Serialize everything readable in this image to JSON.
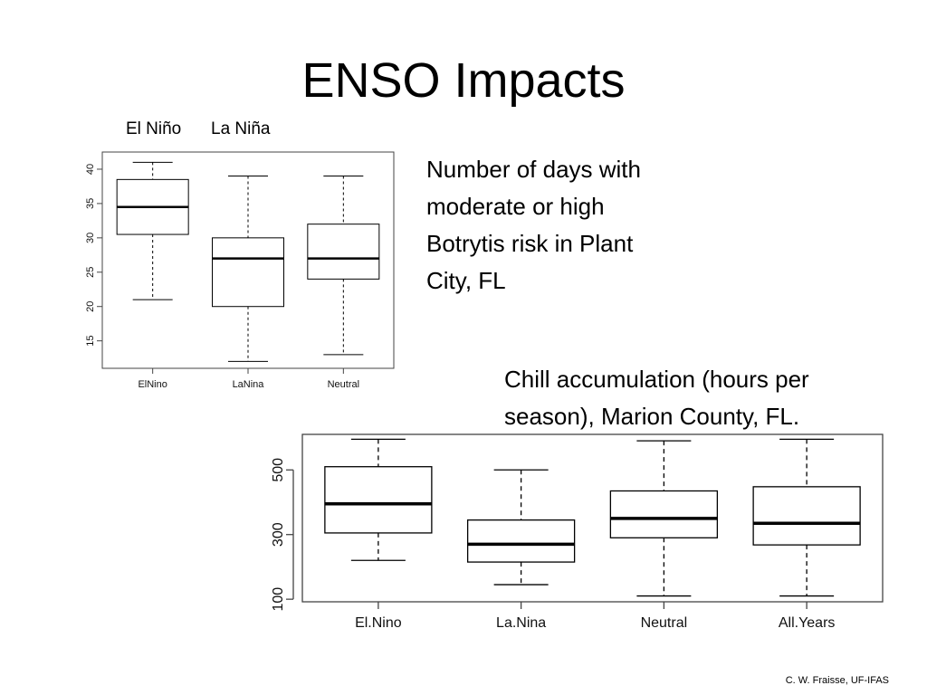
{
  "slide": {
    "title": "ENSO Impacts",
    "top_labels": [
      "El Niño",
      "La Niña"
    ],
    "botrytis_caption": [
      "Number of days with",
      "moderate or high",
      "Botrytis risk in Plant",
      "City, FL"
    ],
    "chill_caption": [
      "Chill accumulation (hours per",
      "season), Marion County, FL."
    ],
    "credit": "C. W. Fraisse, UF-IFAS"
  },
  "chart_data": [
    {
      "type": "box",
      "categories": [
        "ElNino",
        "LaNina",
        "Neutral"
      ],
      "yticks": [
        15,
        20,
        25,
        30,
        35,
        40
      ],
      "ylim": [
        11,
        42.5
      ],
      "boxes": [
        {
          "min": 21,
          "q1": 30.5,
          "median": 34.5,
          "q3": 38.5,
          "max": 41
        },
        {
          "min": 12,
          "q1": 20,
          "median": 27,
          "q3": 30,
          "max": 39
        },
        {
          "min": 13,
          "q1": 24,
          "median": 27,
          "q3": 32,
          "max": 39
        }
      ]
    },
    {
      "type": "box",
      "categories": [
        "El.Nino",
        "La.Nina",
        "Neutral",
        "All.Years"
      ],
      "yticks": [
        100,
        300,
        500
      ],
      "ylim": [
        92,
        610
      ],
      "boxes": [
        {
          "min": 220,
          "q1": 305,
          "median": 395,
          "q3": 510,
          "max": 595
        },
        {
          "min": 145,
          "q1": 215,
          "median": 270,
          "q3": 345,
          "max": 500
        },
        {
          "min": 110,
          "q1": 290,
          "median": 350,
          "q3": 435,
          "max": 590
        },
        {
          "min": 110,
          "q1": 268,
          "median": 335,
          "q3": 448,
          "max": 595
        }
      ]
    }
  ]
}
